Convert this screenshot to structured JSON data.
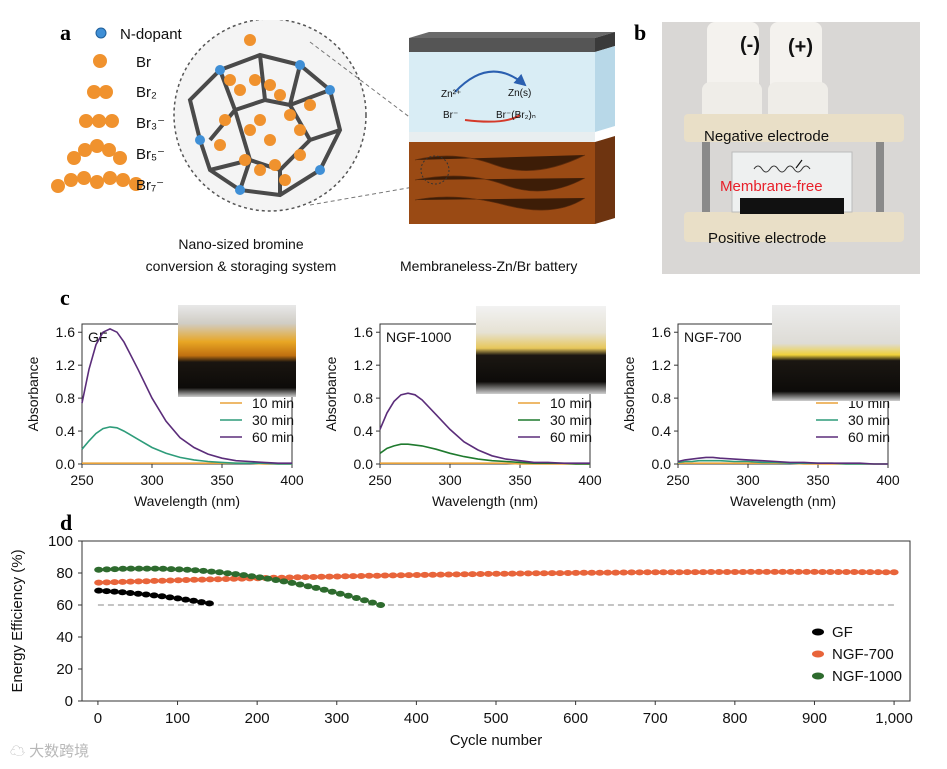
{
  "panel_labels": {
    "a": "a",
    "b": "b",
    "c": "c",
    "d": "d"
  },
  "panel_a": {
    "legend": [
      "N-dopant",
      "Br",
      "Br₂",
      "Br₃⁻",
      "Br₅⁻",
      "Br₇⁻"
    ],
    "caption_left_line1": "Nano-sized bromine",
    "caption_left_line2": "conversion & storaging system",
    "caption_right": "Membraneless-Zn/Br battery",
    "cell_labels": {
      "zn2": "Zn²⁺",
      "zns": "Zn(s)",
      "br": "Br⁻",
      "brcomplex": "Br⁻(Br₂)ₙ"
    },
    "colors": {
      "bromine": "#f0922e",
      "dopant": "#3f8fd6",
      "cage": "#4a4a4a"
    }
  },
  "panel_b": {
    "neg_sign": "(-)",
    "pos_sign": "(+)",
    "negative_electrode": "Negative electrode",
    "membrane_free": "Membrane-free",
    "positive_electrode": "Positive electrode",
    "colors": {
      "membrane_free": "#e8202a"
    }
  },
  "chart_data": [
    {
      "type": "line",
      "label": "GF",
      "xlabel": "Wavelength (nm)",
      "ylabel": "Absorbance",
      "xlim": [
        250,
        400
      ],
      "ylim": [
        0,
        1.7
      ],
      "xticks": [
        "250",
        "300",
        "350",
        "400"
      ],
      "yticks": [
        "0.0",
        "0.4",
        "0.8",
        "1.2",
        "1.6"
      ],
      "x": [
        250,
        255,
        260,
        265,
        270,
        275,
        280,
        290,
        300,
        310,
        320,
        330,
        340,
        350,
        360,
        370,
        380,
        390,
        400
      ],
      "series": [
        {
          "name": "10 min",
          "color": "#e8a23a",
          "values": [
            0.01,
            0.01,
            0.01,
            0.01,
            0.01,
            0.01,
            0.01,
            0.01,
            0.01,
            0.01,
            0.01,
            0.01,
            0.01,
            0.01,
            0.01,
            0.01,
            0.0,
            0.0,
            0.0
          ]
        },
        {
          "name": "30 min",
          "color": "#2e9c7a",
          "values": [
            0.18,
            0.28,
            0.37,
            0.43,
            0.45,
            0.44,
            0.4,
            0.3,
            0.2,
            0.13,
            0.08,
            0.05,
            0.03,
            0.02,
            0.01,
            0.01,
            0.01,
            0.0,
            0.0
          ]
        },
        {
          "name": "60 min",
          "color": "#5b2d7a",
          "values": [
            0.74,
            1.15,
            1.45,
            1.6,
            1.64,
            1.6,
            1.48,
            1.15,
            0.8,
            0.52,
            0.32,
            0.2,
            0.12,
            0.07,
            0.04,
            0.03,
            0.02,
            0.01,
            0.01
          ]
        }
      ]
    },
    {
      "type": "line",
      "label": "NGF-1000",
      "xlabel": "Wavelength (nm)",
      "ylabel": "Absorbance",
      "xlim": [
        250,
        400
      ],
      "ylim": [
        0,
        1.7
      ],
      "xticks": [
        "250",
        "300",
        "350",
        "400"
      ],
      "yticks": [
        "0.0",
        "0.4",
        "0.8",
        "1.2",
        "1.6"
      ],
      "x": [
        250,
        255,
        260,
        265,
        270,
        275,
        280,
        290,
        300,
        310,
        320,
        330,
        340,
        350,
        360,
        370,
        380,
        390,
        400
      ],
      "series": [
        {
          "name": "10 min",
          "color": "#e8a23a",
          "values": [
            0.01,
            0.01,
            0.01,
            0.01,
            0.01,
            0.01,
            0.01,
            0.01,
            0.01,
            0.01,
            0.01,
            0.01,
            0.01,
            0.0,
            0.0,
            0.0,
            0.0,
            0.0,
            0.0
          ]
        },
        {
          "name": "30 min",
          "color": "#1f7a2e",
          "values": [
            0.13,
            0.19,
            0.22,
            0.24,
            0.24,
            0.23,
            0.22,
            0.18,
            0.13,
            0.09,
            0.06,
            0.04,
            0.03,
            0.02,
            0.01,
            0.01,
            0.01,
            0.0,
            0.0
          ]
        },
        {
          "name": "60 min",
          "color": "#5b2d7a",
          "values": [
            0.42,
            0.62,
            0.76,
            0.84,
            0.86,
            0.84,
            0.78,
            0.6,
            0.42,
            0.27,
            0.17,
            0.1,
            0.06,
            0.04,
            0.02,
            0.02,
            0.01,
            0.01,
            0.01
          ]
        }
      ]
    },
    {
      "type": "line",
      "label": "NGF-700",
      "xlabel": "Wavelength (nm)",
      "ylabel": "Absorbance",
      "xlim": [
        250,
        400
      ],
      "ylim": [
        0,
        1.7
      ],
      "xticks": [
        "250",
        "300",
        "350",
        "400"
      ],
      "yticks": [
        "0.0",
        "0.4",
        "0.8",
        "1.2",
        "1.6"
      ],
      "x": [
        250,
        255,
        260,
        265,
        270,
        275,
        280,
        290,
        300,
        310,
        320,
        330,
        340,
        350,
        360,
        370,
        380,
        390,
        400
      ],
      "series": [
        {
          "name": "10 min",
          "color": "#e8a23a",
          "values": [
            0.01,
            0.01,
            0.01,
            0.01,
            0.01,
            0.01,
            0.01,
            0.01,
            0.01,
            0.01,
            0.01,
            0.01,
            0.0,
            0.0,
            0.0,
            0.0,
            0.0,
            0.0,
            0.0
          ]
        },
        {
          "name": "30 min",
          "color": "#2e9c7a",
          "values": [
            0.02,
            0.03,
            0.03,
            0.04,
            0.04,
            0.04,
            0.04,
            0.03,
            0.03,
            0.02,
            0.02,
            0.01,
            0.01,
            0.01,
            0.01,
            0.0,
            0.0,
            0.0,
            0.0
          ]
        },
        {
          "name": "60 min",
          "color": "#5b2d7a",
          "values": [
            0.03,
            0.05,
            0.06,
            0.07,
            0.08,
            0.08,
            0.07,
            0.06,
            0.05,
            0.04,
            0.03,
            0.02,
            0.02,
            0.01,
            0.01,
            0.01,
            0.01,
            0.0,
            0.0
          ]
        }
      ]
    },
    {
      "type": "scatter",
      "xlabel": "Cycle number",
      "ylabel": "Energy Efficiency (%)",
      "xlim": [
        -20,
        1020
      ],
      "ylim": [
        0,
        100
      ],
      "xticks": [
        "0",
        "100",
        "200",
        "300",
        "400",
        "500",
        "600",
        "700",
        "800",
        "900",
        "1,000"
      ],
      "yticks": [
        "0",
        "20",
        "40",
        "60",
        "80",
        "100"
      ],
      "reference_line_y": 60,
      "legend_position": "lower-right",
      "series": [
        {
          "name": "GF",
          "color": "#000000",
          "x_start": 1,
          "x_end": 140,
          "y_start": 69,
          "y_mid": 66,
          "y_end": 61
        },
        {
          "name": "NGF-700",
          "color": "#e8643a",
          "x_start": 1,
          "x_end": 1000,
          "y_start": 74,
          "y_mid": 79.5,
          "y_end": 80.5
        },
        {
          "name": "NGF-1000",
          "color": "#2e6b2e",
          "x_start": 1,
          "x_end": 355,
          "y_start": 82,
          "y_mid": 79,
          "y_end": 60
        }
      ]
    }
  ],
  "watermark": "大数跨境"
}
